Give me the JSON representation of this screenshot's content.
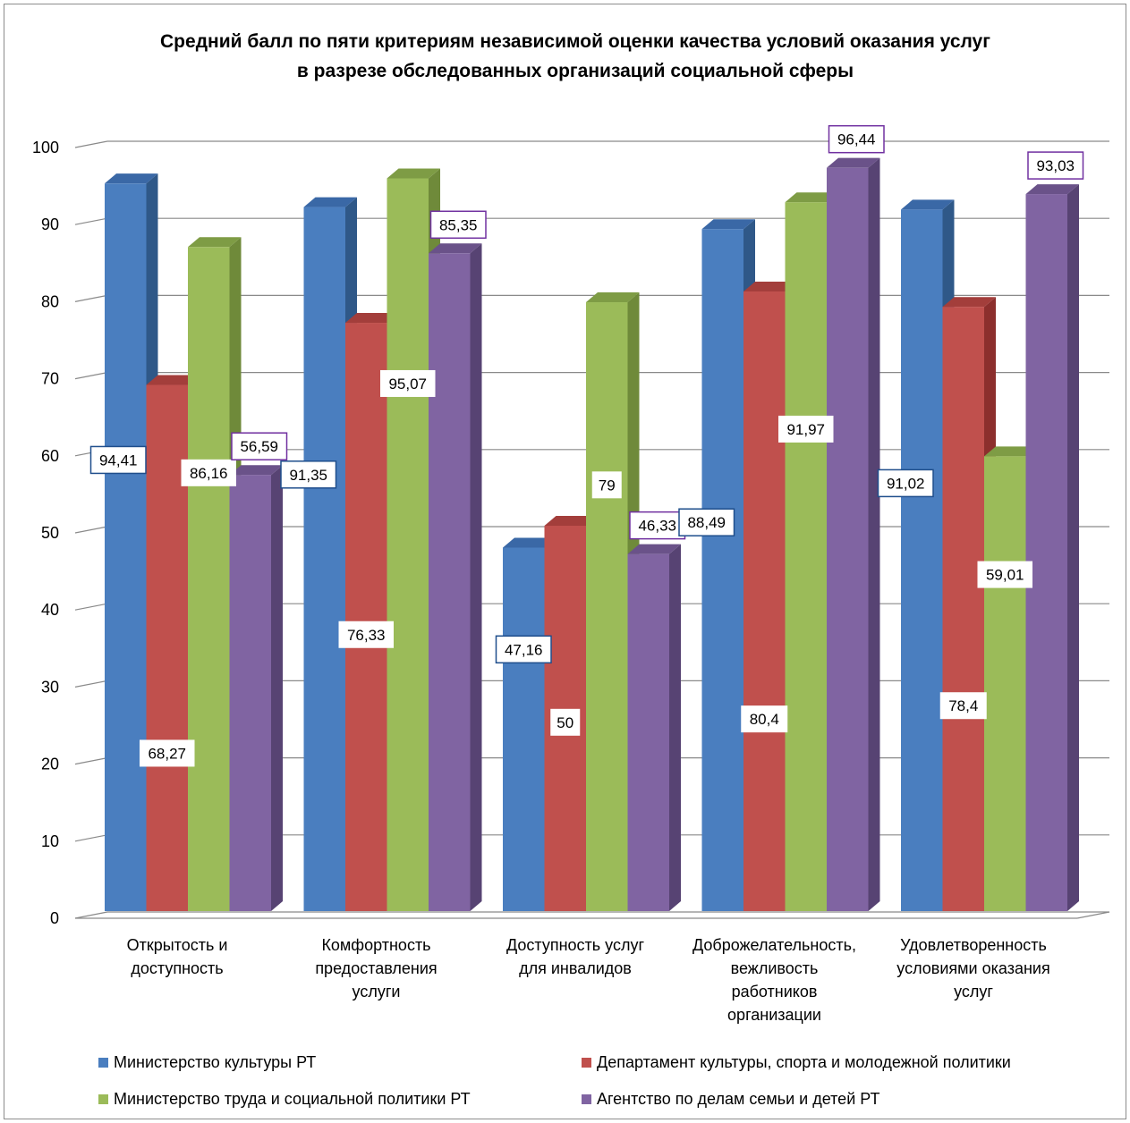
{
  "chart_data": {
    "type": "bar",
    "title": [
      "Средний балл по пяти критериям независимой оценки качества условий оказания услуг",
      "в разрезе обследованных организаций социальной сферы"
    ],
    "categories": [
      [
        "Открытость и",
        "доступность"
      ],
      [
        "Комфортность",
        "предоставления",
        "услуги"
      ],
      [
        "Доступность услуг",
        "для инвалидов"
      ],
      [
        "Доброжелательность,",
        "вежливость",
        "работников",
        "организации"
      ],
      [
        "Удовлетворенность",
        "условиями оказания",
        "услуг"
      ]
    ],
    "series": [
      {
        "name": "Министерство культуры РТ",
        "color": "#4a7ebf",
        "side": "#2f5888",
        "top": "#3a68a6",
        "border": "#1f4e8c",
        "values": [
          94.41,
          91.35,
          47.16,
          88.49,
          91.02
        ],
        "labels": [
          "94,41",
          "91,35",
          "47,16",
          "88,49",
          "91,02"
        ]
      },
      {
        "name": "Департамент  культуры, спорта и молодежной политики",
        "color": "#c0504d",
        "side": "#8c2f2d",
        "top": "#a33e3b",
        "border": "#c0504d",
        "values": [
          68.27,
          76.33,
          50,
          80.4,
          78.4
        ],
        "labels": [
          "68,27",
          "76,33",
          "50",
          "80,4",
          "78,4"
        ]
      },
      {
        "name": "Министерство труда и социальной политики РТ",
        "color": "#9bbb59",
        "side": "#6f8a3a",
        "top": "#7e9c45",
        "border": "#9bbb59",
        "values": [
          86.16,
          95.07,
          79,
          91.97,
          59.01
        ],
        "labels": [
          "86,16",
          "95,07",
          "79",
          "91,97",
          "59,01"
        ]
      },
      {
        "name": "Агентство по делам семьи и детей РТ",
        "color": "#8064a2",
        "side": "#574373",
        "top": "#6a5289",
        "border": "#7030a0",
        "values": [
          56.59,
          85.35,
          46.33,
          96.44,
          93.03
        ],
        "labels": [
          "56,59",
          "85,35",
          "46,33",
          "96,44",
          "93,03"
        ]
      }
    ],
    "ylim": [
      0,
      100
    ],
    "yticks": [
      0,
      10,
      20,
      30,
      40,
      50,
      60,
      70,
      80,
      90,
      100
    ],
    "grid": true,
    "legend_position": "bottom"
  }
}
